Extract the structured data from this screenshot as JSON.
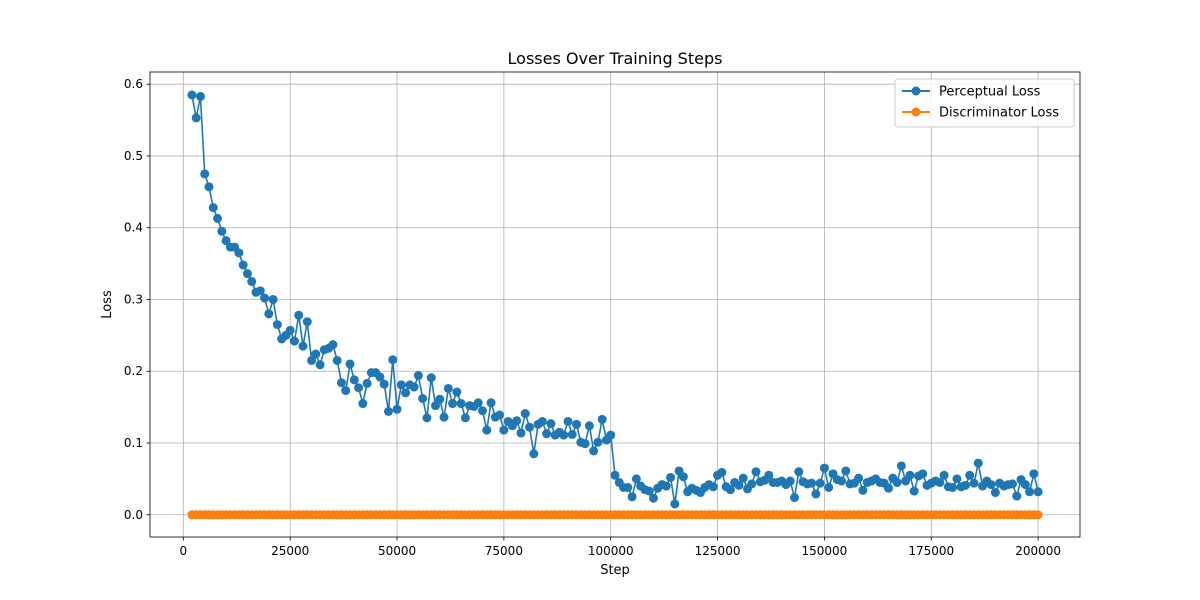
{
  "chart_data": {
    "type": "line",
    "title": "Losses Over Training Steps",
    "xlabel": "Step",
    "ylabel": "Loss",
    "xlim": [
      -7800,
      209800
    ],
    "ylim": [
      -0.031,
      0.617
    ],
    "xticks": [
      0,
      25000,
      50000,
      75000,
      100000,
      125000,
      150000,
      175000,
      200000
    ],
    "xtick_labels": [
      "0",
      "25000",
      "50000",
      "75000",
      "100000",
      "125000",
      "150000",
      "175000",
      "200000"
    ],
    "yticks": [
      0.0,
      0.1,
      0.2,
      0.3,
      0.4,
      0.5,
      0.6
    ],
    "ytick_labels": [
      "0.0",
      "0.1",
      "0.2",
      "0.3",
      "0.4",
      "0.5",
      "0.6"
    ],
    "grid": true,
    "legend_position": "top-right",
    "x_start": 2000,
    "x_step": 1000,
    "series": [
      {
        "name": "Perceptual Loss",
        "color": "#1f77b4",
        "marker": "circle",
        "values": [
          0.585,
          0.553,
          0.583,
          0.475,
          0.457,
          0.428,
          0.413,
          0.395,
          0.382,
          0.373,
          0.373,
          0.365,
          0.348,
          0.336,
          0.325,
          0.31,
          0.312,
          0.302,
          0.28,
          0.3,
          0.265,
          0.245,
          0.25,
          0.257,
          0.242,
          0.278,
          0.235,
          0.269,
          0.215,
          0.224,
          0.209,
          0.23,
          0.232,
          0.237,
          0.215,
          0.184,
          0.173,
          0.21,
          0.188,
          0.177,
          0.155,
          0.183,
          0.198,
          0.198,
          0.192,
          0.182,
          0.144,
          0.216,
          0.147,
          0.181,
          0.17,
          0.181,
          0.178,
          0.194,
          0.162,
          0.135,
          0.191,
          0.152,
          0.161,
          0.136,
          0.176,
          0.155,
          0.171,
          0.155,
          0.135,
          0.152,
          0.151,
          0.156,
          0.145,
          0.118,
          0.156,
          0.136,
          0.139,
          0.118,
          0.13,
          0.124,
          0.131,
          0.114,
          0.141,
          0.122,
          0.085,
          0.126,
          0.13,
          0.113,
          0.127,
          0.111,
          0.115,
          0.111,
          0.13,
          0.112,
          0.126,
          0.101,
          0.099,
          0.124,
          0.089,
          0.101,
          0.133,
          0.104,
          0.111,
          0.055,
          0.045,
          0.038,
          0.038,
          0.025,
          0.05,
          0.04,
          0.035,
          0.033,
          0.023,
          0.037,
          0.042,
          0.04,
          0.052,
          0.015,
          0.061,
          0.053,
          0.032,
          0.037,
          0.034,
          0.031,
          0.038,
          0.042,
          0.039,
          0.055,
          0.059,
          0.039,
          0.035,
          0.045,
          0.041,
          0.051,
          0.036,
          0.043,
          0.06,
          0.046,
          0.048,
          0.055,
          0.045,
          0.045,
          0.047,
          0.042,
          0.047,
          0.024,
          0.06,
          0.046,
          0.043,
          0.044,
          0.029,
          0.044,
          0.065,
          0.038,
          0.057,
          0.049,
          0.047,
          0.061,
          0.043,
          0.044,
          0.051,
          0.034,
          0.045,
          0.047,
          0.05,
          0.045,
          0.044,
          0.037,
          0.051,
          0.045,
          0.068,
          0.047,
          0.055,
          0.033,
          0.054,
          0.057,
          0.041,
          0.044,
          0.047,
          0.045,
          0.055,
          0.039,
          0.038,
          0.05,
          0.039,
          0.041,
          0.055,
          0.044,
          0.072,
          0.04,
          0.047,
          0.042,
          0.031,
          0.044,
          0.04,
          0.042,
          0.043,
          0.026,
          0.049,
          0.042,
          0.032,
          0.057,
          0.032
        ]
      },
      {
        "name": "Discriminator Loss",
        "color": "#ff7f0e",
        "marker": "circle",
        "constant_value": 0.0
      }
    ]
  }
}
